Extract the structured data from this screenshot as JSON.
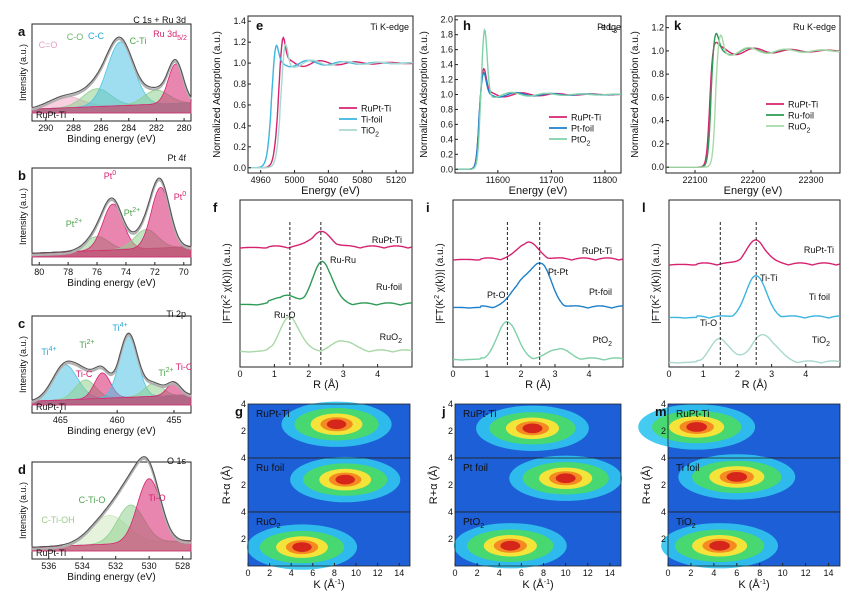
{
  "colors": {
    "rupt": "#d6226f",
    "foil_blue": "#3ab5e0",
    "tio2": "#a9d8cf",
    "ru_foil": "#2e9a56",
    "ruo2": "#a8d8a8",
    "pt_foil": "#1d7fc9",
    "pto2": "#7fd1a8",
    "fit": "#555555",
    "raw": "#b0b0b0"
  },
  "panels": {
    "a": {
      "letter": "a",
      "title": "C 1s + Ru 3d",
      "sample": "RuPt-Ti",
      "xlabel": "Binding energy (eV)",
      "ylabel": "Intensity (a.u.)",
      "ticks": [
        "290",
        "288",
        "286",
        "284",
        "282",
        "280"
      ],
      "peaks": [
        "C=O",
        "C-O",
        "C-C",
        "C-Ti",
        "Ru 3d5/2"
      ]
    },
    "b": {
      "letter": "b",
      "title": "Pt 4f",
      "xlabel": "Binding energy (eV)",
      "ylabel": "Intensity (a.u.)",
      "ticks": [
        "80",
        "78",
        "76",
        "74",
        "72",
        "70"
      ],
      "peaks": [
        "Pt2+",
        "Pt0",
        "Pt2+",
        "Pt0"
      ]
    },
    "c": {
      "letter": "c",
      "title": "Ti 2p",
      "sample": "RuPt-Ti",
      "xlabel": "Binding energy (eV)",
      "ylabel": "Intensity (a.u.)",
      "ticks": [
        "465",
        "460",
        "455"
      ],
      "peaks": [
        "Ti4+",
        "Ti2+",
        "Ti-C",
        "Ti4+",
        "Ti2+",
        "Ti-C"
      ]
    },
    "d": {
      "letter": "d",
      "title": "O 1s",
      "sample": "RuPt-Ti",
      "xlabel": "Binding energy (eV)",
      "ylabel": "Intensity (a.u.)",
      "ticks": [
        "536",
        "534",
        "532",
        "530",
        "528"
      ],
      "peaks": [
        "C-Ti-OH",
        "C-Ti-O",
        "Ti-O"
      ]
    },
    "e": {
      "letter": "e",
      "title": "Ti K-edge",
      "xlabel": "Energy (eV)",
      "ylabel": "Normalized Adsorption (a.u.)",
      "xticks": [
        "4960",
        "5000",
        "5040",
        "5080",
        "5120"
      ],
      "yticks": [
        "0.0",
        "0.2",
        "0.4",
        "0.6",
        "0.8",
        "1.0",
        "1.2",
        "1.4"
      ],
      "legend": [
        "RuPt-Ti",
        "Ti-foil",
        "TiO2"
      ]
    },
    "h": {
      "letter": "h",
      "title": "Pt L3-edge",
      "xlabel": "Energy (eV)",
      "ylabel": "Normalized Adsorption (a.u.)",
      "xticks": [
        "11600",
        "11700",
        "11800"
      ],
      "yticks": [
        "0.0",
        "0.2",
        "0.4",
        "0.6",
        "0.8",
        "1.0",
        "1.2",
        "1.4",
        "1.6",
        "1.8",
        "2.0"
      ],
      "legend": [
        "RuPt-Ti",
        "Pt-foil",
        "PtO2"
      ]
    },
    "k": {
      "letter": "k",
      "title": "Ru K-edge",
      "xlabel": "Energy (eV)",
      "ylabel": "Normalized Adsorption (a.u.)",
      "xticks": [
        "22100",
        "22200",
        "22300"
      ],
      "yticks": [
        "0.0",
        "0.2",
        "0.4",
        "0.6",
        "0.8",
        "1.0",
        "1.2"
      ],
      "legend": [
        "RuPt-Ti",
        "Ru-foil",
        "RuO2"
      ]
    },
    "f": {
      "letter": "f",
      "xlabel": "R (Å)",
      "ylabel": "|FT(K2 χ(k))| (a.u.)",
      "xticks": [
        "0",
        "1",
        "2",
        "3",
        "4"
      ],
      "labels": [
        "RuPt-Ti",
        "Ru-foil",
        "RuO2",
        "Ru-Ru",
        "Ru-O"
      ]
    },
    "i": {
      "letter": "i",
      "xlabel": "R (Å)",
      "ylabel": "|FT(K2 χ(k))| (a.u.)",
      "xticks": [
        "0",
        "1",
        "2",
        "3",
        "4"
      ],
      "labels": [
        "RuPt-Ti",
        "Pt-foil",
        "PtO2",
        "Pt-Pt",
        "Pt-O"
      ]
    },
    "l": {
      "letter": "l",
      "xlabel": "R (Å)",
      "ylabel": "|FT(K2 χ(k))| (a.u.)",
      "xticks": [
        "0",
        "1",
        "2",
        "3",
        "4"
      ],
      "labels": [
        "RuPt-Ti",
        "Ti foil",
        "TiO2",
        "Ti-Ti",
        "Ti-O"
      ]
    },
    "g": {
      "letter": "g",
      "xlabel": "K (Å-1)",
      "ylabel": "R+α (Å)",
      "xticks": [
        "0",
        "2",
        "4",
        "6",
        "8",
        "10",
        "12",
        "14"
      ],
      "rows": [
        "RuPt-Ti",
        "Ru foil",
        "RuO2"
      ]
    },
    "j": {
      "letter": "j",
      "xlabel": "K (Å-1)",
      "ylabel": "R+α (Å)",
      "xticks": [
        "0",
        "2",
        "4",
        "6",
        "8",
        "10",
        "12",
        "14"
      ],
      "rows": [
        "RuPt-Ti",
        "Pt foil",
        "PtO2"
      ]
    },
    "m": {
      "letter": "m",
      "xlabel": "K (Å-1)",
      "ylabel": "R+α (Å)",
      "xticks": [
        "0",
        "2",
        "4",
        "6",
        "8",
        "10",
        "12",
        "14"
      ],
      "rows": [
        "RuPt-Ti",
        "Ti foil",
        "TiO2"
      ]
    }
  },
  "chart_data": [
    {
      "panel": "a",
      "type": "line",
      "title": "C 1s + Ru 3d",
      "xlabel": "Binding energy (eV)",
      "ylabel": "Intensity (a.u.)",
      "xlim": [
        291,
        279.5
      ],
      "x_reversed": true,
      "components": [
        {
          "name": "C=O",
          "center": 288.6,
          "amp": 0.18,
          "width": 1.2
        },
        {
          "name": "C-O",
          "center": 286.3,
          "amp": 0.28,
          "width": 1.0
        },
        {
          "name": "C-C",
          "center": 284.6,
          "amp": 1.0,
          "width": 0.95
        },
        {
          "name": "C-Ti",
          "center": 282.0,
          "amp": 0.22,
          "width": 0.9
        },
        {
          "name": "Ru 3d5/2",
          "center": 280.6,
          "amp": 0.62,
          "width": 0.55
        }
      ]
    },
    {
      "panel": "b",
      "type": "line",
      "title": "Pt 4f",
      "xlabel": "Binding energy (eV)",
      "ylabel": "Intensity (a.u.)",
      "xlim": [
        80.5,
        69.5
      ],
      "x_reversed": true,
      "components": [
        {
          "name": "Pt2+",
          "center": 76.0,
          "amp": 0.22,
          "width": 0.8
        },
        {
          "name": "Pt0",
          "center": 74.9,
          "amp": 0.72,
          "width": 0.7
        },
        {
          "name": "Pt2+",
          "center": 72.6,
          "amp": 0.3,
          "width": 0.8
        },
        {
          "name": "Pt0",
          "center": 71.6,
          "amp": 0.95,
          "width": 0.65
        }
      ]
    },
    {
      "panel": "c",
      "type": "line",
      "title": "Ti 2p",
      "xlabel": "Binding energy (eV)",
      "ylabel": "Intensity (a.u.)",
      "xlim": [
        467.5,
        453.5
      ],
      "x_reversed": true,
      "components": [
        {
          "name": "Ti4+",
          "center": 464.6,
          "amp": 0.55,
          "width": 1.1
        },
        {
          "name": "Ti2+",
          "center": 462.8,
          "amp": 0.3,
          "width": 0.9
        },
        {
          "name": "Ti-C",
          "center": 461.3,
          "amp": 0.4,
          "width": 0.7
        },
        {
          "name": "Ti4+",
          "center": 459.0,
          "amp": 1.0,
          "width": 0.8
        },
        {
          "name": "Ti2+",
          "center": 456.8,
          "amp": 0.2,
          "width": 0.8
        },
        {
          "name": "Ti-C",
          "center": 455.0,
          "amp": 0.2,
          "width": 0.6
        }
      ]
    },
    {
      "panel": "d",
      "type": "line",
      "title": "O 1s",
      "xlabel": "Binding energy (eV)",
      "ylabel": "Intensity (a.u.)",
      "xlim": [
        537,
        527.5
      ],
      "x_reversed": true,
      "components": [
        {
          "name": "C-Ti-OH",
          "center": 532.4,
          "amp": 0.45,
          "width": 1.1
        },
        {
          "name": "C-Ti-O",
          "center": 531.1,
          "amp": 0.6,
          "width": 0.8
        },
        {
          "name": "Ti-O",
          "center": 530.0,
          "amp": 1.0,
          "width": 0.7
        }
      ]
    },
    {
      "panel": "e",
      "type": "line",
      "title": "Ti K-edge",
      "xlabel": "Energy (eV)",
      "ylabel": "Normalized Adsorption (a.u.)",
      "xlim": [
        4945,
        5140
      ],
      "ylim": [
        -0.05,
        1.45
      ],
      "series": [
        {
          "name": "RuPt-Ti",
          "edge": 4980,
          "step": 1.0,
          "white": 0.28
        },
        {
          "name": "Ti-foil",
          "edge": 4972,
          "step": 1.0,
          "white": 0.2
        },
        {
          "name": "TiO2",
          "edge": 4983,
          "step": 1.0,
          "white": 0.25
        }
      ]
    },
    {
      "panel": "h",
      "type": "line",
      "title": "Pt L3-edge",
      "xlabel": "Energy (eV)",
      "ylabel": "Normalized Adsorption (a.u.)",
      "xlim": [
        11520,
        11830
      ],
      "ylim": [
        -0.05,
        2.05
      ],
      "series": [
        {
          "name": "RuPt-Ti",
          "edge": 11564,
          "step": 1.0,
          "white": 0.33
        },
        {
          "name": "Pt-foil",
          "edge": 11564,
          "step": 1.0,
          "white": 0.27
        },
        {
          "name": "PtO2",
          "edge": 11566,
          "step": 1.0,
          "white": 0.88
        }
      ]
    },
    {
      "panel": "k",
      "type": "line",
      "title": "Ru K-edge",
      "xlabel": "Energy (eV)",
      "ylabel": "Normalized Adsorption (a.u.)",
      "xlim": [
        22050,
        22350
      ],
      "ylim": [
        -0.05,
        1.3
      ],
      "series": [
        {
          "name": "RuPt-Ti",
          "edge": 22125,
          "step": 1.0,
          "white": 0.05
        },
        {
          "name": "Ru-foil",
          "edge": 22127,
          "step": 1.0,
          "white": 0.13
        },
        {
          "name": "RuO2",
          "edge": 22135,
          "step": 1.0,
          "white": 0.15
        }
      ]
    },
    {
      "panel": "f",
      "type": "line",
      "xlabel": "R (Å)",
      "ylabel": "|FT(K2 χ(k))| (a.u.)",
      "xlim": [
        0,
        5
      ],
      "series": [
        {
          "name": "RuPt-Ti",
          "peaks": [
            [
              2.35,
              0.35
            ]
          ]
        },
        {
          "name": "Ru-foil",
          "peaks": [
            [
              2.4,
              1.0
            ],
            [
              1.3,
              0.2
            ]
          ]
        },
        {
          "name": "RuO2",
          "peaks": [
            [
              1.45,
              0.8
            ],
            [
              3.0,
              0.25
            ]
          ]
        }
      ],
      "markers": [
        {
          "name": "Ru-O",
          "x": 1.45
        },
        {
          "name": "Ru-Ru",
          "x": 2.35
        }
      ]
    },
    {
      "panel": "i",
      "type": "line",
      "xlabel": "R (Å)",
      "ylabel": "|FT(K2 χ(k))| (a.u.)",
      "xlim": [
        0,
        5
      ],
      "series": [
        {
          "name": "RuPt-Ti",
          "peaks": [
            [
              2.2,
              0.4
            ]
          ]
        },
        {
          "name": "Pt-foil",
          "peaks": [
            [
              2.6,
              1.0
            ],
            [
              2.0,
              0.55
            ]
          ]
        },
        {
          "name": "PtO2",
          "peaks": [
            [
              1.6,
              0.9
            ],
            [
              3.1,
              0.25
            ]
          ]
        }
      ],
      "markers": [
        {
          "name": "Pt-O",
          "x": 1.6
        },
        {
          "name": "Pt-Pt",
          "x": 2.55
        }
      ]
    },
    {
      "panel": "l",
      "type": "line",
      "xlabel": "R (Å)",
      "ylabel": "|FT(K2 χ(k))| (a.u.)",
      "xlim": [
        0,
        5
      ],
      "series": [
        {
          "name": "RuPt-Ti",
          "peaks": [
            [
              2.55,
              0.55
            ]
          ]
        },
        {
          "name": "Ti foil",
          "peaks": [
            [
              2.55,
              1.0
            ]
          ]
        },
        {
          "name": "TiO2",
          "peaks": [
            [
              1.5,
              0.55
            ],
            [
              2.6,
              0.45
            ],
            [
              3.0,
              0.35
            ]
          ]
        }
      ],
      "markers": [
        {
          "name": "Ti-O",
          "x": 1.5
        },
        {
          "name": "Ti-Ti",
          "x": 2.55
        }
      ]
    },
    {
      "panel": "g",
      "type": "heatmap",
      "xlabel": "K (Å-1)",
      "ylabel": "R+α (Å)",
      "xlim": [
        0,
        15
      ],
      "ylim": [
        0,
        4
      ],
      "rows": [
        {
          "name": "RuPt-Ti",
          "center": [
            8.2,
            2.5
          ]
        },
        {
          "name": "Ru foil",
          "center": [
            9.0,
            2.4
          ]
        },
        {
          "name": "RuO2",
          "center": [
            5.0,
            1.4
          ]
        }
      ]
    },
    {
      "panel": "j",
      "type": "heatmap",
      "xlabel": "K (Å-1)",
      "ylabel": "R+α (Å)",
      "xlim": [
        0,
        15
      ],
      "ylim": [
        0,
        4
      ],
      "rows": [
        {
          "name": "RuPt-Ti",
          "center": [
            7.0,
            2.2
          ]
        },
        {
          "name": "Pt foil",
          "center": [
            10.0,
            2.5
          ]
        },
        {
          "name": "PtO2",
          "center": [
            5.0,
            1.5
          ]
        }
      ]
    },
    {
      "panel": "m",
      "type": "heatmap",
      "xlabel": "K (Å-1)",
      "ylabel": "R+α (Å)",
      "xlim": [
        0,
        15
      ],
      "ylim": [
        0,
        4
      ],
      "rows": [
        {
          "name": "RuPt-Ti",
          "center": [
            2.5,
            2.3
          ]
        },
        {
          "name": "Ti foil",
          "center": [
            6.0,
            2.6
          ]
        },
        {
          "name": "TiO2",
          "center": [
            4.5,
            1.5
          ]
        }
      ]
    }
  ]
}
